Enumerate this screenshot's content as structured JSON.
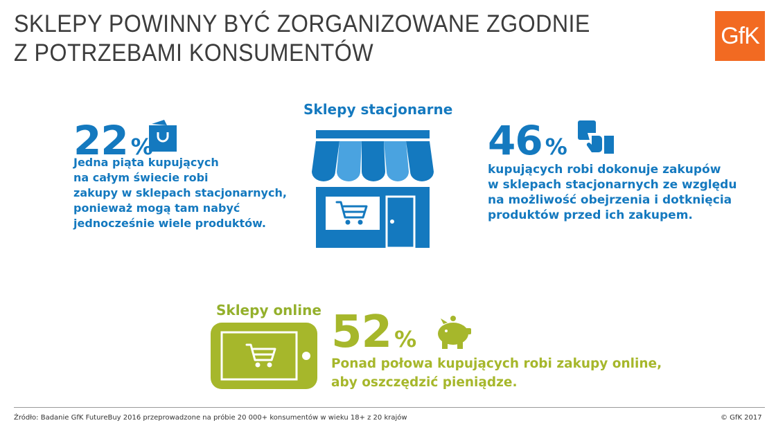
{
  "header": {
    "title_line1": "SKLEPY POWINNY BYĆ ZORGANIZOWANE ZGODNIE",
    "title_line2": "Z POTRZEBAMI KONSUMENTÓW",
    "logo_text": "GfK"
  },
  "stores": {
    "heading": "Sklepy stacjonarne",
    "online_heading": "Sklepy online"
  },
  "stats": [
    {
      "value": "22",
      "unit": "%",
      "icon": "shopping-bag-icon",
      "lines": [
        "Jedna piąta kupujących",
        "na całym świecie robi",
        "zakupy w sklepach stacjonarnych,",
        "ponieważ mogą tam nabyć",
        "jednocześnie wiele produktów."
      ]
    },
    {
      "value": "46",
      "unit": "%",
      "icon": "hand-touch-icon",
      "lines": [
        "kupujących robi dokonuje zakupów",
        "w sklepach stacjonarnych ze względu",
        "na możliwość obejrzenia i dotknięcia",
        "produktów przed ich zakupem."
      ]
    },
    {
      "value": "52",
      "unit": "%",
      "icon": "piggy-bank-icon",
      "lines": [
        "Ponad połowa kupujących robi zakupy online,",
        "aby oszczędzić pieniądze."
      ]
    }
  ],
  "footer": {
    "source": "Źródło: Badanie GfK FutureBuy 2016 przeprowadzone na próbie 20 000+ konsumentów w wieku 18+ z 20 krajów",
    "copyright": "© GfK 2017"
  },
  "colors": {
    "blue": "#1479bf",
    "green": "#a6b72b",
    "orange": "#f26a22",
    "title_gray": "#3c3c3c"
  }
}
